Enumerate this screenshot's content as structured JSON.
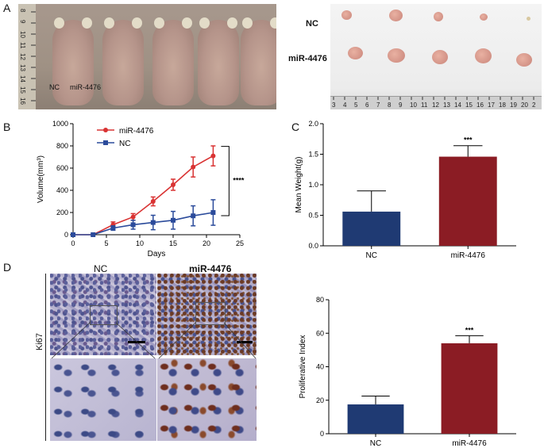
{
  "panels": {
    "a": "A",
    "b": "B",
    "c": "C",
    "d": "D"
  },
  "photo_mice": {
    "nc_label": "NC",
    "mir_label": "miR-4476",
    "ruler_numbers": [
      "8",
      "9",
      "10",
      "11",
      "12",
      "13",
      "14",
      "15",
      "16"
    ]
  },
  "photo_tumors": {
    "nc_label": "NC",
    "mir_label": "miR-4476",
    "ruler_numbers": [
      "3",
      "4",
      "5",
      "6",
      "7",
      "8",
      "9",
      "10",
      "11",
      "12",
      "13",
      "14",
      "15",
      "16",
      "17",
      "18",
      "19",
      "20",
      "2"
    ]
  },
  "ihc": {
    "col_nc": "NC",
    "col_mir": "miR-4476",
    "row_label": "Ki67"
  },
  "colors": {
    "nc": "#1f3a73",
    "mir": "#8b1c24",
    "line_nc": "#2b4b9b",
    "line_mir": "#d93333"
  },
  "chart_data": [
    {
      "id": "B",
      "type": "line",
      "xlabel": "Days",
      "ylabel": "Volume(mm³)",
      "xlim": [
        0,
        25
      ],
      "ylim": [
        0,
        1000
      ],
      "xticks": [
        0,
        5,
        10,
        15,
        20,
        25
      ],
      "yticks": [
        0,
        200,
        400,
        600,
        800,
        1000
      ],
      "legend_position": "top-left",
      "significance": "****",
      "series": [
        {
          "name": "miR-4476",
          "color": "#d93333",
          "marker": "circle",
          "x": [
            0,
            3,
            6,
            9,
            12,
            15,
            18,
            21
          ],
          "y": [
            0,
            0,
            90,
            160,
            300,
            450,
            610,
            710
          ],
          "err": [
            0,
            0,
            25,
            30,
            40,
            50,
            90,
            90
          ]
        },
        {
          "name": "NC",
          "color": "#2b4b9b",
          "marker": "square",
          "x": [
            0,
            3,
            6,
            9,
            12,
            15,
            18,
            21
          ],
          "y": [
            0,
            0,
            60,
            90,
            110,
            130,
            170,
            200
          ],
          "err": [
            0,
            0,
            20,
            40,
            65,
            80,
            90,
            115
          ]
        }
      ]
    },
    {
      "id": "C",
      "type": "bar",
      "ylabel": "Mean Weight(g)",
      "ylim": [
        0,
        2.0
      ],
      "yticks": [
        "0.0",
        "0.5",
        "1.0",
        "1.5",
        "2.0"
      ],
      "categories": [
        "NC",
        "miR-4476"
      ],
      "values": [
        0.56,
        1.46
      ],
      "err": [
        0.34,
        0.18
      ],
      "colors": [
        "#1f3a73",
        "#8b1c24"
      ],
      "significance": "***"
    },
    {
      "id": "D",
      "type": "bar",
      "ylabel": "Proliferative Index",
      "ylim": [
        0,
        80
      ],
      "yticks": [
        "0",
        "20",
        "40",
        "60",
        "80"
      ],
      "categories": [
        "NC",
        "miR-4476"
      ],
      "values": [
        17.5,
        54
      ],
      "err": [
        5,
        4.5
      ],
      "colors": [
        "#1f3a73",
        "#8b1c24"
      ],
      "significance": "***"
    }
  ]
}
